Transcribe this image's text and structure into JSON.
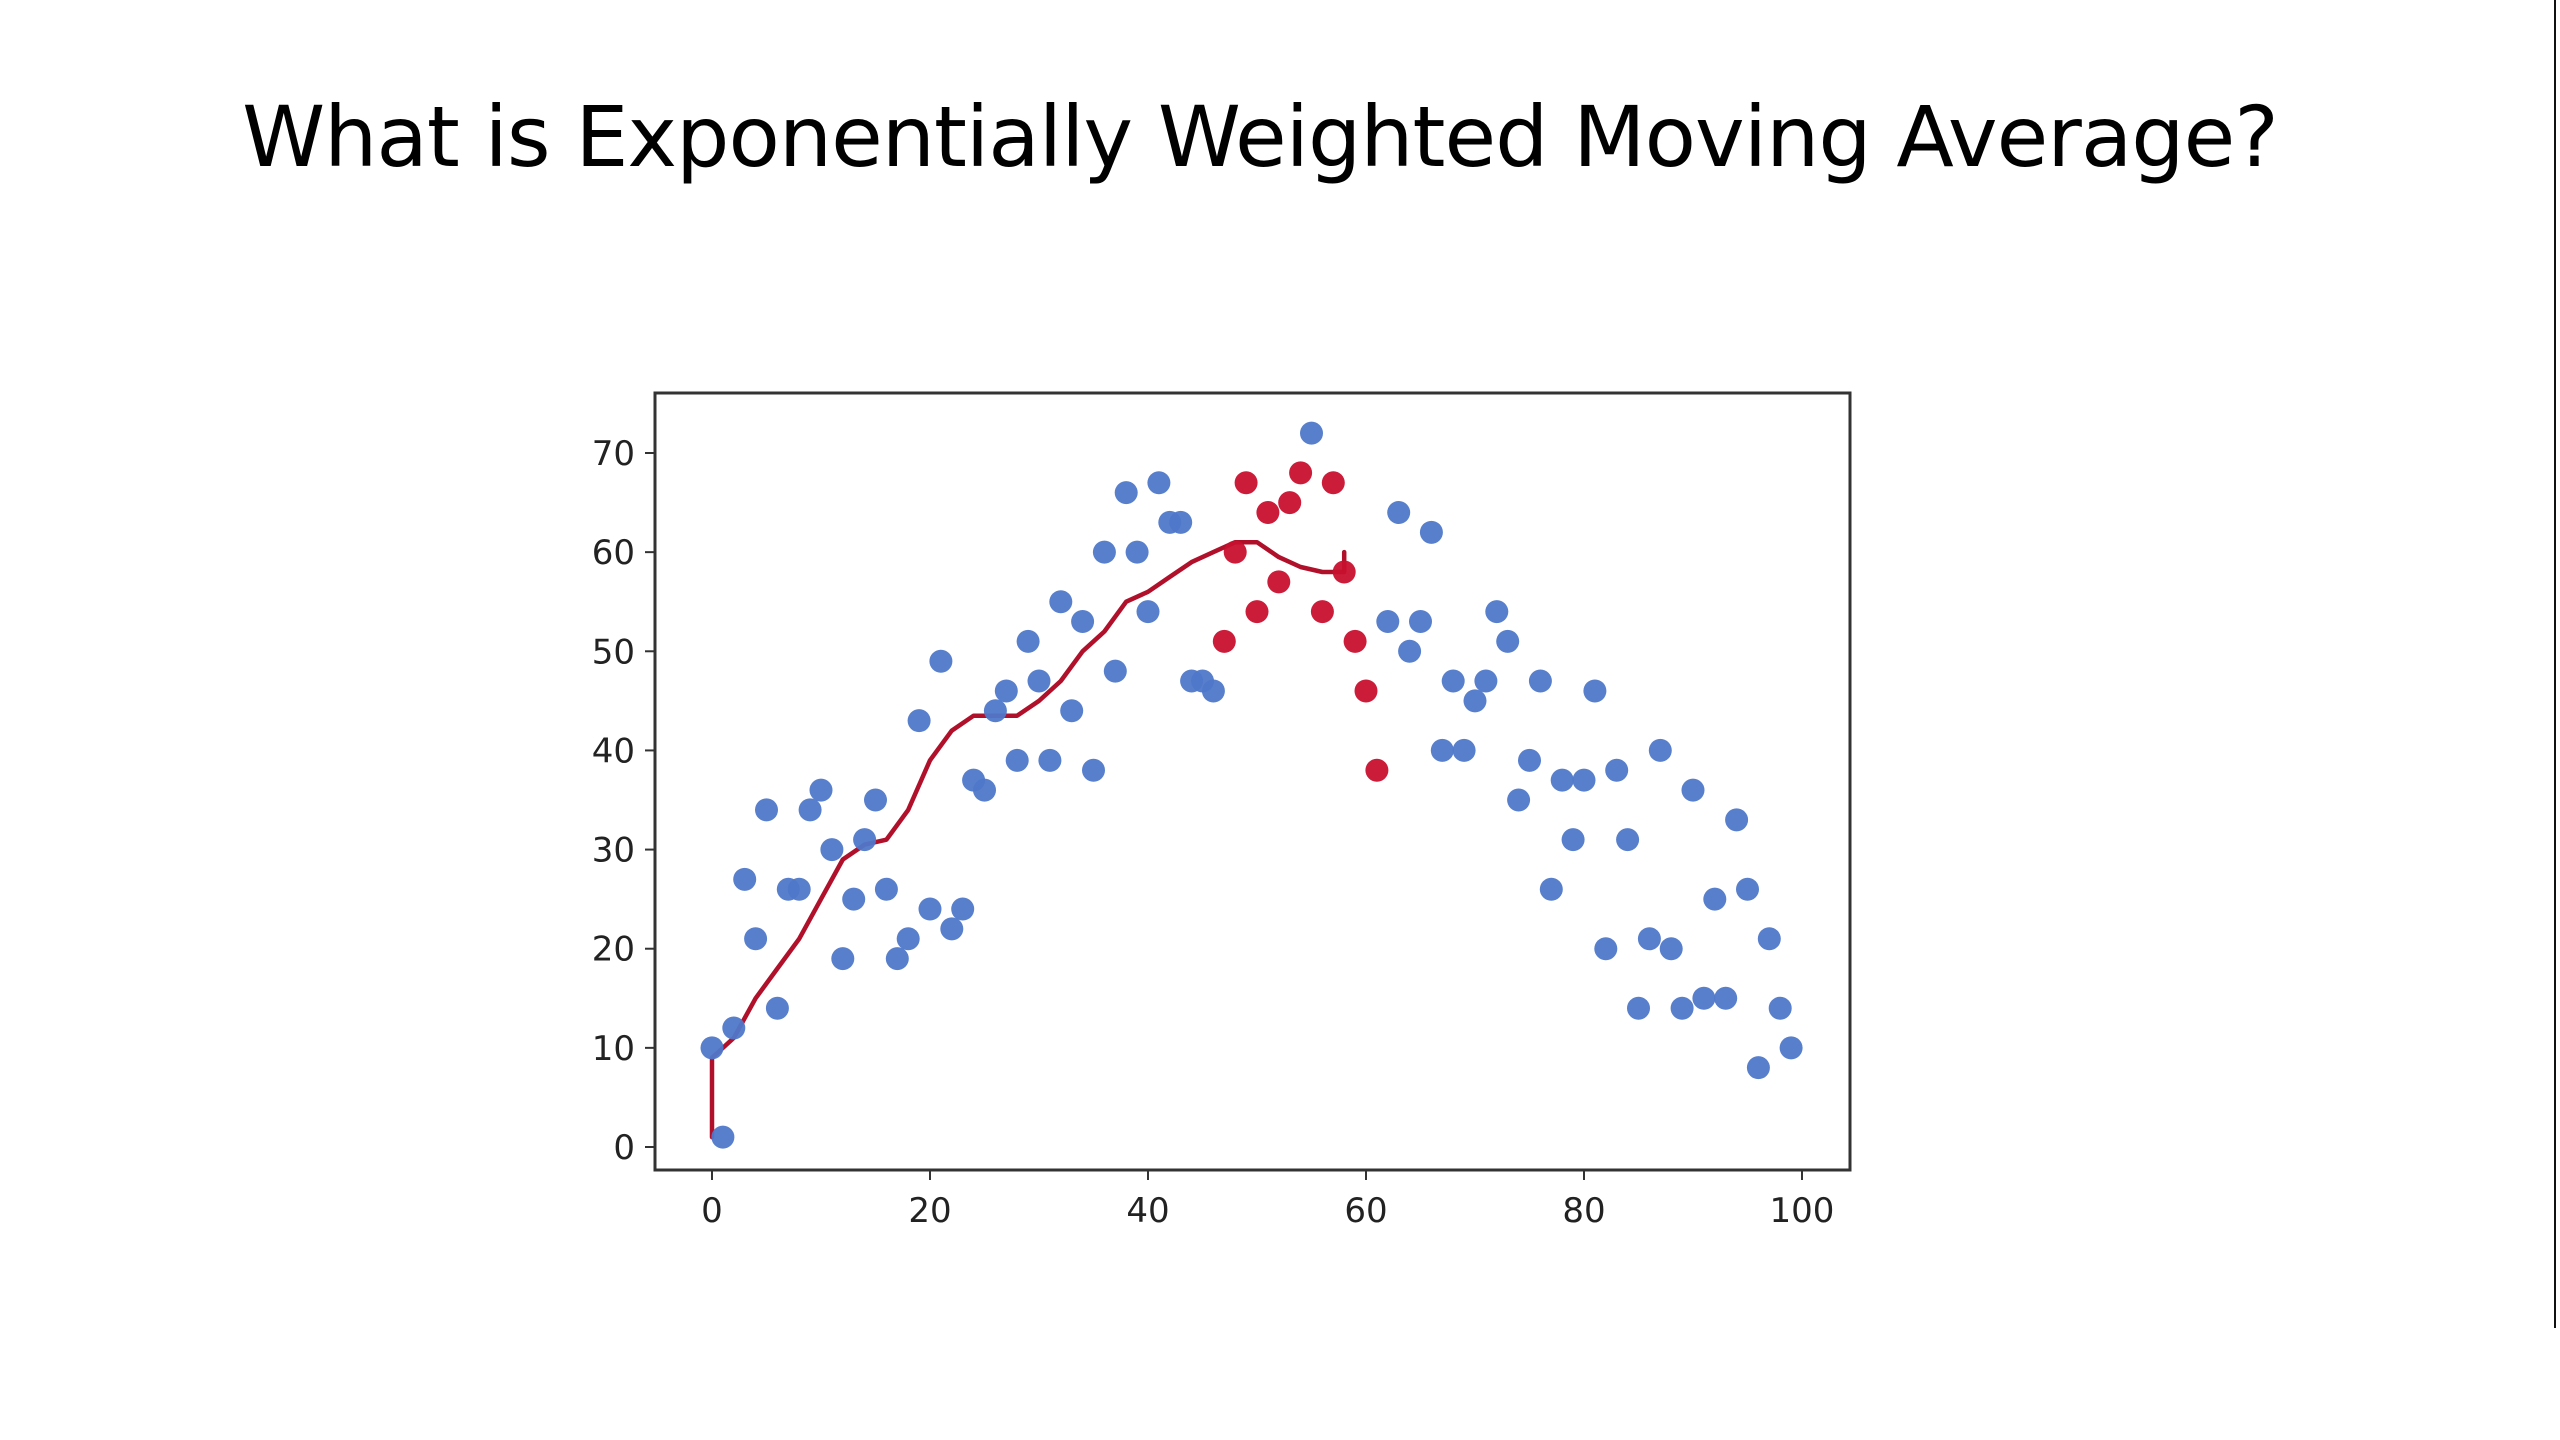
{
  "slide": {
    "title": "What is Exponentially Weighted Moving Average?"
  },
  "colors": {
    "blue_points": "#4f78c9",
    "red_points": "#c8102e",
    "ewma_line": "#b0102a",
    "axis": "#333333"
  },
  "chart_data": {
    "type": "scatter",
    "title": "",
    "xlabel": "",
    "ylabel": "",
    "xlim": [
      -5,
      105
    ],
    "ylim": [
      -2,
      76
    ],
    "xticks": [
      0,
      20,
      40,
      60,
      80,
      100
    ],
    "yticks": [
      0,
      10,
      20,
      30,
      40,
      50,
      60,
      70
    ],
    "grid": false,
    "series": [
      {
        "color": "#4f78c9",
        "points": [
          [
            0,
            10
          ],
          [
            1,
            1
          ],
          [
            2,
            12
          ],
          [
            3,
            27
          ],
          [
            4,
            21
          ],
          [
            5,
            34
          ],
          [
            6,
            14
          ],
          [
            7,
            26
          ],
          [
            8,
            26
          ],
          [
            9,
            34
          ],
          [
            10,
            36
          ],
          [
            11,
            30
          ],
          [
            12,
            19
          ],
          [
            13,
            25
          ],
          [
            14,
            31
          ],
          [
            15,
            35
          ],
          [
            16,
            26
          ],
          [
            17,
            19
          ],
          [
            18,
            21
          ],
          [
            19,
            43
          ],
          [
            20,
            24
          ],
          [
            21,
            49
          ],
          [
            22,
            22
          ],
          [
            23,
            24
          ],
          [
            24,
            37
          ],
          [
            25,
            36
          ],
          [
            26,
            44
          ],
          [
            27,
            46
          ],
          [
            28,
            39
          ],
          [
            29,
            51
          ],
          [
            30,
            47
          ],
          [
            31,
            39
          ],
          [
            32,
            55
          ],
          [
            33,
            44
          ],
          [
            34,
            53
          ],
          [
            35,
            38
          ],
          [
            36,
            60
          ],
          [
            37,
            48
          ],
          [
            38,
            66
          ],
          [
            39,
            60
          ],
          [
            40,
            54
          ],
          [
            41,
            67
          ],
          [
            42,
            63
          ],
          [
            43,
            63
          ],
          [
            44,
            47
          ],
          [
            45,
            47
          ],
          [
            46,
            46
          ],
          [
            62,
            53
          ],
          [
            63,
            64
          ],
          [
            64,
            50
          ],
          [
            65,
            53
          ],
          [
            66,
            62
          ],
          [
            67,
            40
          ],
          [
            68,
            47
          ],
          [
            69,
            40
          ],
          [
            70,
            45
          ],
          [
            71,
            47
          ],
          [
            72,
            54
          ],
          [
            73,
            51
          ],
          [
            74,
            35
          ],
          [
            75,
            39
          ],
          [
            76,
            47
          ],
          [
            77,
            26
          ],
          [
            78,
            37
          ],
          [
            79,
            31
          ],
          [
            80,
            37
          ],
          [
            81,
            46
          ],
          [
            82,
            20
          ],
          [
            83,
            38
          ],
          [
            84,
            31
          ],
          [
            85,
            14
          ],
          [
            86,
            21
          ],
          [
            87,
            40
          ],
          [
            88,
            20
          ],
          [
            89,
            14
          ],
          [
            90,
            36
          ],
          [
            91,
            15
          ],
          [
            92,
            25
          ],
          [
            93,
            15
          ],
          [
            94,
            33
          ],
          [
            95,
            26
          ],
          [
            96,
            8
          ],
          [
            97,
            21
          ],
          [
            98,
            14
          ],
          [
            99,
            10
          ],
          [
            55,
            72
          ]
        ]
      },
      {
        "color": "#c8102e",
        "points": [
          [
            47,
            51
          ],
          [
            48,
            60
          ],
          [
            49,
            67
          ],
          [
            50,
            54
          ],
          [
            51,
            64
          ],
          [
            52,
            57
          ],
          [
            53,
            65
          ],
          [
            54,
            68
          ],
          [
            56,
            54
          ],
          [
            57,
            67
          ],
          [
            58,
            58
          ],
          [
            59,
            51
          ],
          [
            60,
            46
          ],
          [
            61,
            38
          ]
        ]
      }
    ],
    "line": {
      "color": "#b0102a",
      "points": [
        [
          0,
          1
        ],
        [
          0,
          9
        ],
        [
          2,
          11
        ],
        [
          4,
          15
        ],
        [
          6,
          18
        ],
        [
          8,
          21
        ],
        [
          10,
          25
        ],
        [
          12,
          29
        ],
        [
          14,
          30.5
        ],
        [
          16,
          31
        ],
        [
          18,
          34
        ],
        [
          20,
          39
        ],
        [
          22,
          42
        ],
        [
          24,
          43.5
        ],
        [
          26,
          43.5
        ],
        [
          28,
          43.5
        ],
        [
          30,
          45
        ],
        [
          32,
          47
        ],
        [
          34,
          50
        ],
        [
          36,
          52
        ],
        [
          38,
          55
        ],
        [
          40,
          56
        ],
        [
          42,
          57.5
        ],
        [
          44,
          59
        ],
        [
          46,
          60
        ],
        [
          48,
          61
        ],
        [
          50,
          61
        ],
        [
          52,
          59.5
        ],
        [
          54,
          58.5
        ],
        [
          56,
          58
        ],
        [
          58,
          58
        ],
        [
          58,
          60
        ]
      ]
    }
  }
}
